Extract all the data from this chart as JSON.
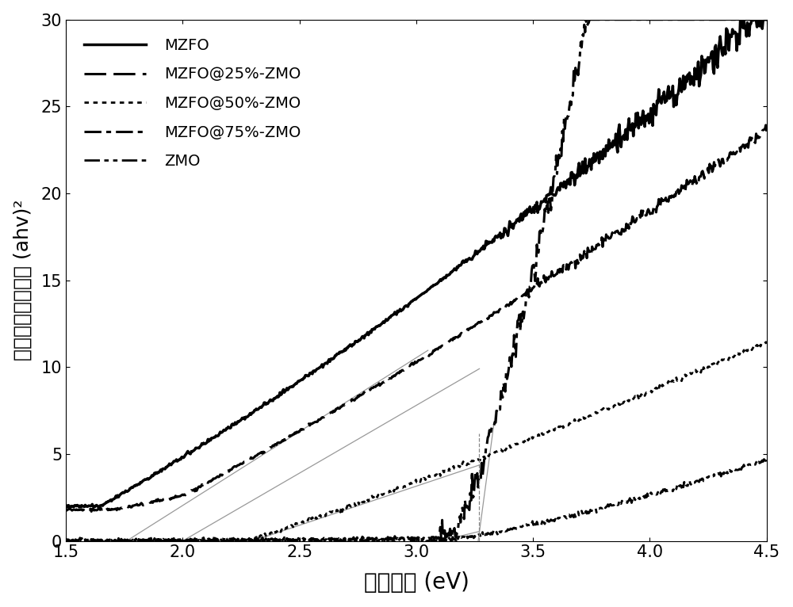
{
  "xlabel": "禁带宽度 (eV)",
  "ylabel": "吸光度与电子光能 (ahv)²",
  "xlim": [
    1.5,
    4.5
  ],
  "ylim": [
    0,
    30
  ],
  "xticks": [
    1.5,
    2.0,
    2.5,
    3.0,
    3.5,
    4.0,
    4.5
  ],
  "yticks": [
    0,
    5,
    10,
    15,
    20,
    25,
    30
  ],
  "legend_labels": [
    "MZFO",
    "MZFO@25%-ZMO",
    "MZFO@50%-ZMO",
    "MZFO@75%-ZMO",
    "ZMO"
  ],
  "line_widths": [
    2.5,
    2.2,
    2.0,
    2.2,
    2.0
  ],
  "tangent_color": "#999999",
  "tangent_linewidth": 0.9,
  "vline_x": 3.27,
  "vline_color": "#888888",
  "background_color": "white",
  "xlabel_fontsize": 20,
  "ylabel_fontsize": 18,
  "tick_fontsize": 15,
  "legend_fontsize": 14
}
